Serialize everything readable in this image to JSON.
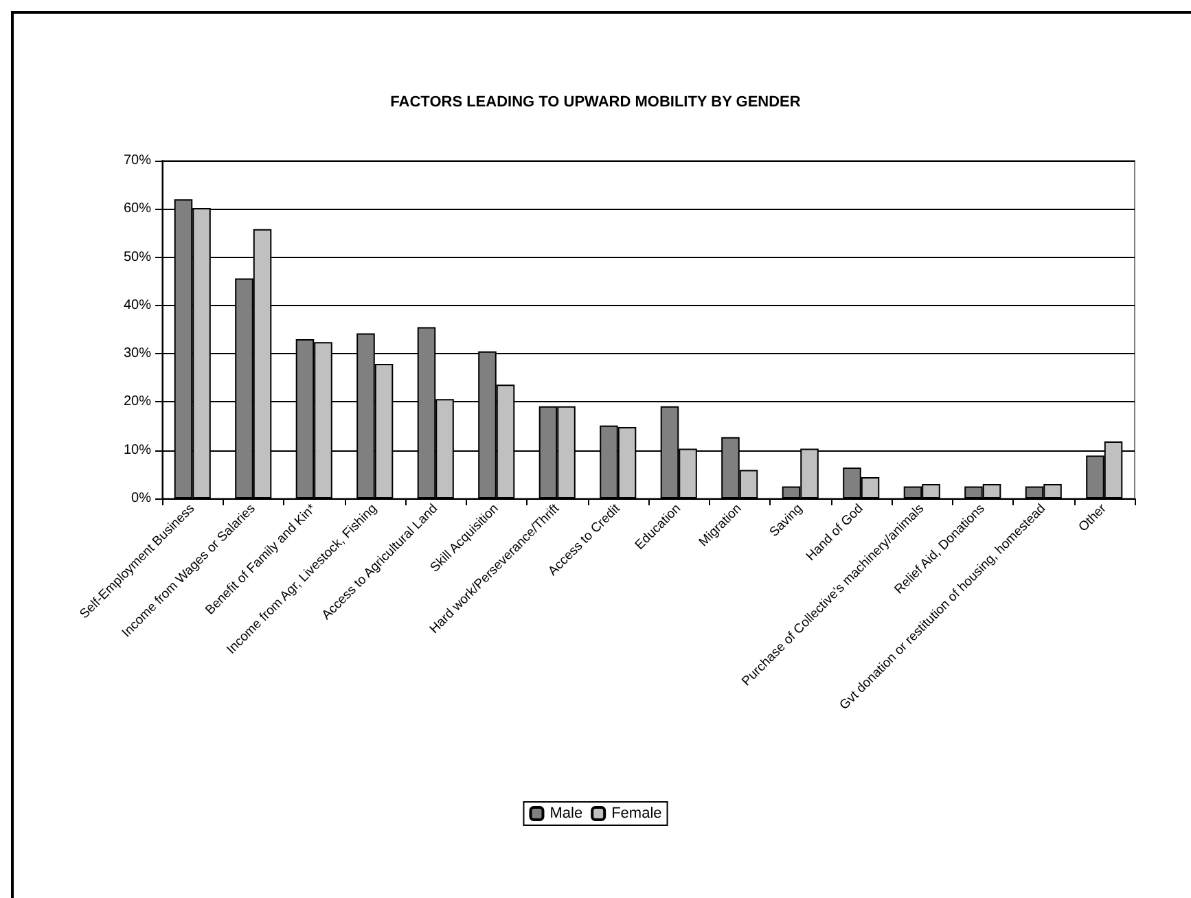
{
  "chart_data": {
    "type": "bar",
    "title": "FACTORS LEADING TO UPWARD MOBILITY BY GENDER",
    "categories": [
      "Self-Employment Business",
      "Income from Wages or Salaries",
      "Benefit of Family and Kin*",
      "Income from Agr, Livestock, Fishing",
      "Access to Agricultural Land",
      "Skill Acquisition",
      "Hard work/Perseverance/Thrift",
      "Access to Credit",
      "Education",
      "Migration",
      "Saving",
      "Hand of God",
      "Purchase of Collective's machinery/animals",
      "Relief Aid, Donations",
      "Gvt donation or restitution of housing, homestead",
      "Other"
    ],
    "series": [
      {
        "name": "Male",
        "color": "#808080",
        "values": [
          62,
          45.6,
          33,
          34.2,
          35.5,
          30.5,
          19.1,
          15.1,
          19.1,
          12.7,
          2.5,
          6.4,
          2.5,
          2.5,
          2.5,
          8.9
        ]
      },
      {
        "name": "Female",
        "color": "#c0c0c0",
        "values": [
          60.2,
          55.8,
          32.4,
          27.9,
          20.6,
          23.6,
          19.1,
          14.8,
          10.3,
          5.9,
          10.3,
          4.4,
          3,
          3,
          3,
          11.8
        ]
      }
    ],
    "ylim": [
      0,
      70
    ],
    "yticks": [
      {
        "value": 0,
        "label": "0%"
      },
      {
        "value": 10,
        "label": "10%"
      },
      {
        "value": 20,
        "label": "20%"
      },
      {
        "value": 30,
        "label": "30%"
      },
      {
        "value": 40,
        "label": "40%"
      },
      {
        "value": 50,
        "label": "50%"
      },
      {
        "value": 60,
        "label": "60%"
      },
      {
        "value": 70,
        "label": "70%"
      }
    ],
    "grid": "y",
    "legend": "bottom"
  }
}
